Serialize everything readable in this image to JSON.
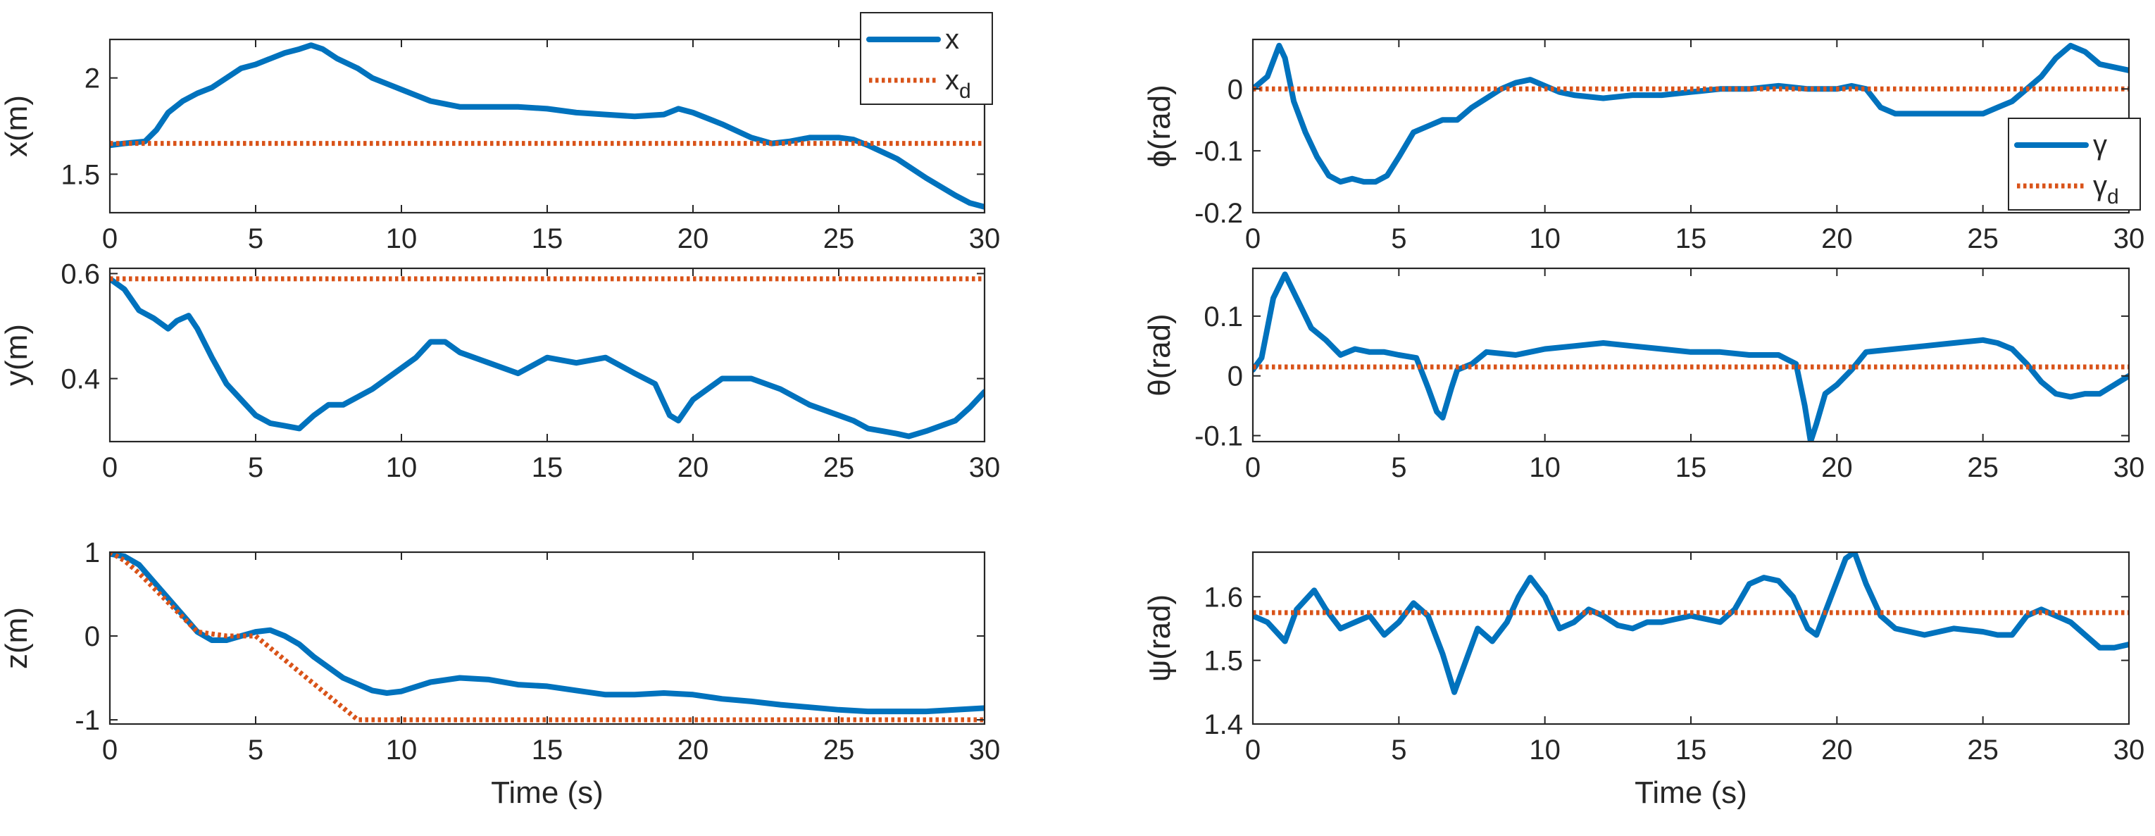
{
  "chart_data": [
    {
      "id": "x",
      "type": "line",
      "ylabel": "x(m)",
      "xlabel": "",
      "xlim": [
        0,
        30
      ],
      "ylim": [
        1.3,
        2.2
      ],
      "xticks": [
        "0",
        "5",
        "10",
        "15",
        "20",
        "25",
        "30"
      ],
      "yticks": [
        {
          "v": 1.5,
          "t": "1.5"
        },
        {
          "v": 2,
          "t": "2"
        }
      ],
      "legend": {
        "position": "top-right",
        "entries": [
          {
            "series": "actual",
            "label": "x",
            "sub": ""
          },
          {
            "series": "desired",
            "label": "x",
            "sub": "d"
          }
        ]
      },
      "series": [
        {
          "name": "x",
          "role": "actual",
          "color": "#0072BD",
          "x": [
            0,
            0.5,
            1.2,
            1.6,
            2,
            2.5,
            3,
            3.5,
            4,
            4.5,
            5,
            5.5,
            6,
            6.5,
            6.9,
            7.3,
            7.8,
            8.5,
            9,
            10,
            11,
            12,
            13,
            14,
            15,
            16,
            17,
            18,
            19,
            19.5,
            20,
            21,
            22,
            22.7,
            23.3,
            24,
            25,
            25.5,
            26,
            27,
            28,
            29,
            29.5,
            30
          ],
          "y": [
            1.65,
            1.66,
            1.67,
            1.73,
            1.82,
            1.88,
            1.92,
            1.95,
            2.0,
            2.05,
            2.07,
            2.1,
            2.13,
            2.15,
            2.17,
            2.15,
            2.1,
            2.05,
            2.0,
            1.94,
            1.88,
            1.85,
            1.85,
            1.85,
            1.84,
            1.82,
            1.81,
            1.8,
            1.81,
            1.84,
            1.82,
            1.76,
            1.69,
            1.66,
            1.67,
            1.69,
            1.69,
            1.68,
            1.65,
            1.58,
            1.48,
            1.39,
            1.35,
            1.33
          ]
        },
        {
          "name": "x_d",
          "role": "desired",
          "color": "#D95319",
          "x": [
            0,
            30
          ],
          "y": [
            1.66,
            1.66
          ]
        }
      ]
    },
    {
      "id": "y",
      "type": "line",
      "ylabel": "y(m)",
      "xlabel": "",
      "xlim": [
        0,
        30
      ],
      "ylim": [
        0.28,
        0.61
      ],
      "xticks": [
        "0",
        "5",
        "10",
        "15",
        "20",
        "25",
        "30"
      ],
      "yticks": [
        {
          "v": 0.4,
          "t": "0.4"
        },
        {
          "v": 0.6,
          "t": "0.6"
        }
      ],
      "legend": null,
      "series": [
        {
          "name": "y",
          "role": "actual",
          "color": "#0072BD",
          "x": [
            0,
            0.5,
            1,
            1.5,
            2,
            2.3,
            2.7,
            3,
            3.5,
            4,
            4.5,
            5,
            5.5,
            6,
            6.5,
            7,
            7.5,
            8,
            9,
            10,
            10.5,
            11,
            11.5,
            12,
            13,
            14,
            15,
            16,
            17,
            18,
            18.7,
            19.2,
            19.5,
            20,
            21,
            21.5,
            22,
            23,
            24,
            25,
            25.5,
            26,
            26.5,
            27,
            27.4,
            28,
            29,
            29.5,
            30
          ],
          "y": [
            0.59,
            0.57,
            0.53,
            0.515,
            0.495,
            0.51,
            0.52,
            0.495,
            0.44,
            0.39,
            0.36,
            0.33,
            0.315,
            0.31,
            0.305,
            0.33,
            0.35,
            0.35,
            0.38,
            0.42,
            0.44,
            0.47,
            0.47,
            0.45,
            0.43,
            0.41,
            0.44,
            0.43,
            0.44,
            0.41,
            0.39,
            0.33,
            0.32,
            0.36,
            0.4,
            0.4,
            0.4,
            0.38,
            0.35,
            0.33,
            0.32,
            0.305,
            0.3,
            0.295,
            0.29,
            0.3,
            0.32,
            0.345,
            0.375
          ]
        },
        {
          "name": "y_d",
          "role": "desired",
          "color": "#D95319",
          "x": [
            0,
            30
          ],
          "y": [
            0.59,
            0.59
          ]
        }
      ]
    },
    {
      "id": "z",
      "type": "line",
      "ylabel": "z(m)",
      "xlabel": "Time (s)",
      "xlim": [
        0,
        30
      ],
      "ylim": [
        -1.05,
        1.0
      ],
      "xticks": [
        "0",
        "5",
        "10",
        "15",
        "20",
        "25",
        "30"
      ],
      "yticks": [
        {
          "v": -1,
          "t": "-1"
        },
        {
          "v": 0,
          "t": "0"
        },
        {
          "v": 1,
          "t": "1"
        }
      ],
      "legend": null,
      "series": [
        {
          "name": "z",
          "role": "actual",
          "color": "#0072BD",
          "x": [
            0,
            0.5,
            1,
            1.5,
            2,
            2.5,
            3,
            3.5,
            4,
            4.5,
            5,
            5.5,
            6,
            6.5,
            7,
            8,
            9,
            9.5,
            10,
            11,
            12,
            13,
            14,
            15,
            16,
            17,
            18,
            19,
            20,
            21,
            22,
            23,
            24,
            25,
            26,
            27,
            28,
            29,
            30
          ],
          "y": [
            0.98,
            0.95,
            0.85,
            0.65,
            0.45,
            0.25,
            0.05,
            -0.05,
            -0.05,
            0.0,
            0.05,
            0.07,
            0.0,
            -0.1,
            -0.25,
            -0.5,
            -0.65,
            -0.68,
            -0.66,
            -0.55,
            -0.5,
            -0.52,
            -0.58,
            -0.6,
            -0.65,
            -0.7,
            -0.7,
            -0.68,
            -0.7,
            -0.75,
            -0.78,
            -0.82,
            -0.85,
            -0.88,
            -0.9,
            -0.9,
            -0.9,
            -0.88,
            -0.86
          ]
        },
        {
          "name": "z_d",
          "role": "desired",
          "color": "#D95319",
          "x": [
            0,
            0.5,
            1,
            2,
            3,
            4,
            5,
            8.5,
            30
          ],
          "y": [
            1.0,
            0.9,
            0.75,
            0.4,
            0.05,
            0.0,
            0.0,
            -1.0,
            -1.0
          ]
        }
      ]
    },
    {
      "id": "phi",
      "type": "line",
      "ylabel": "ϕ(rad)",
      "xlabel": "",
      "xlim": [
        0,
        30
      ],
      "ylim": [
        -0.2,
        0.08
      ],
      "xticks": [
        "0",
        "5",
        "10",
        "15",
        "20",
        "25",
        "30"
      ],
      "yticks": [
        {
          "v": -0.2,
          "t": "-0.2"
        },
        {
          "v": -0.1,
          "t": "-0.1"
        },
        {
          "v": 0,
          "t": "0"
        }
      ],
      "legend": {
        "position": "right",
        "entries": [
          {
            "series": "actual",
            "label": "γ",
            "sub": ""
          },
          {
            "series": "desired",
            "label": "γ",
            "sub": "d"
          }
        ]
      },
      "series": [
        {
          "name": "phi",
          "role": "actual",
          "color": "#0072BD",
          "x": [
            0,
            0.5,
            0.9,
            1.1,
            1.4,
            1.8,
            2.2,
            2.6,
            3,
            3.4,
            3.8,
            4.2,
            4.6,
            5,
            5.5,
            6,
            6.5,
            7,
            7.5,
            8,
            8.5,
            9,
            9.5,
            10,
            10.5,
            11,
            12,
            13,
            14,
            15,
            16,
            17,
            18,
            19,
            20,
            20.5,
            21,
            21.5,
            22,
            23,
            24,
            25,
            25.5,
            26,
            26.5,
            27,
            27.5,
            28,
            28.5,
            29,
            30
          ],
          "y": [
            0.0,
            0.02,
            0.07,
            0.05,
            -0.02,
            -0.07,
            -0.11,
            -0.14,
            -0.15,
            -0.145,
            -0.15,
            -0.15,
            -0.14,
            -0.11,
            -0.07,
            -0.06,
            -0.05,
            -0.05,
            -0.03,
            -0.015,
            0.0,
            0.01,
            0.015,
            0.005,
            -0.005,
            -0.01,
            -0.015,
            -0.01,
            -0.01,
            -0.005,
            0.0,
            0.0,
            0.005,
            0.0,
            0.0,
            0.005,
            0.0,
            -0.03,
            -0.04,
            -0.04,
            -0.04,
            -0.04,
            -0.03,
            -0.02,
            0.0,
            0.02,
            0.05,
            0.07,
            0.06,
            0.04,
            0.03
          ]
        },
        {
          "name": "phi_d",
          "role": "desired",
          "color": "#D95319",
          "x": [
            0,
            30
          ],
          "y": [
            0.0,
            0.0
          ]
        }
      ]
    },
    {
      "id": "theta",
      "type": "line",
      "ylabel": "θ(rad)",
      "xlabel": "",
      "xlim": [
        0,
        30
      ],
      "ylim": [
        -0.11,
        0.18
      ],
      "xticks": [
        "0",
        "5",
        "10",
        "15",
        "20",
        "25",
        "30"
      ],
      "yticks": [
        {
          "v": -0.1,
          "t": "-0.1"
        },
        {
          "v": 0,
          "t": "0"
        },
        {
          "v": 0.1,
          "t": "0.1"
        }
      ],
      "legend": null,
      "series": [
        {
          "name": "theta",
          "role": "actual",
          "color": "#0072BD",
          "x": [
            0,
            0.3,
            0.7,
            1.1,
            1.5,
            2,
            2.5,
            3,
            3.5,
            4,
            4.5,
            5,
            5.6,
            6,
            6.3,
            6.5,
            6.8,
            7,
            7.5,
            8,
            9,
            10,
            11,
            12,
            13,
            14,
            15,
            16,
            17,
            18,
            18.6,
            18.9,
            19.1,
            19.3,
            19.6,
            20,
            20.5,
            21,
            22,
            23,
            24,
            25,
            25.5,
            26,
            26.5,
            27,
            27.5,
            28,
            28.5,
            29,
            30
          ],
          "y": [
            0.01,
            0.03,
            0.13,
            0.17,
            0.13,
            0.08,
            0.06,
            0.035,
            0.045,
            0.04,
            0.04,
            0.035,
            0.03,
            -0.02,
            -0.06,
            -0.07,
            -0.02,
            0.01,
            0.02,
            0.04,
            0.035,
            0.045,
            0.05,
            0.055,
            0.05,
            0.045,
            0.04,
            0.04,
            0.035,
            0.035,
            0.02,
            -0.05,
            -0.11,
            -0.08,
            -0.03,
            -0.015,
            0.01,
            0.04,
            0.045,
            0.05,
            0.055,
            0.06,
            0.055,
            0.045,
            0.02,
            -0.01,
            -0.03,
            -0.035,
            -0.03,
            -0.03,
            0.0
          ]
        },
        {
          "name": "theta_d",
          "role": "desired",
          "color": "#D95319",
          "x": [
            0,
            30
          ],
          "y": [
            0.015,
            0.015
          ]
        }
      ]
    },
    {
      "id": "psi",
      "type": "line",
      "ylabel": "ψ(rad)",
      "xlabel": "Time (s)",
      "xlim": [
        0,
        30
      ],
      "ylim": [
        1.4,
        1.67
      ],
      "xticks": [
        "0",
        "5",
        "10",
        "15",
        "20",
        "25",
        "30"
      ],
      "yticks": [
        {
          "v": 1.4,
          "t": "1.4"
        },
        {
          "v": 1.5,
          "t": "1.5"
        },
        {
          "v": 1.6,
          "t": "1.6"
        }
      ],
      "legend": null,
      "series": [
        {
          "name": "psi",
          "role": "actual",
          "color": "#0072BD",
          "x": [
            0,
            0.5,
            1.1,
            1.5,
            2.1,
            2.5,
            3,
            3.5,
            4,
            4.5,
            5,
            5.5,
            6,
            6.5,
            6.9,
            7.3,
            7.7,
            8.2,
            8.7,
            9.1,
            9.5,
            10,
            10.5,
            11,
            11.5,
            12,
            12.5,
            13,
            13.5,
            14,
            15,
            15.5,
            16,
            16.5,
            17,
            17.5,
            18,
            18.5,
            19,
            19.3,
            19.8,
            20.3,
            20.6,
            21,
            21.5,
            22,
            23,
            24,
            25,
            25.5,
            26,
            26.5,
            27,
            28,
            28.5,
            29,
            29.5,
            30
          ],
          "y": [
            1.57,
            1.56,
            1.53,
            1.58,
            1.61,
            1.58,
            1.55,
            1.56,
            1.57,
            1.54,
            1.56,
            1.59,
            1.57,
            1.51,
            1.45,
            1.5,
            1.55,
            1.53,
            1.56,
            1.6,
            1.63,
            1.6,
            1.55,
            1.56,
            1.58,
            1.57,
            1.555,
            1.55,
            1.56,
            1.56,
            1.57,
            1.565,
            1.56,
            1.58,
            1.62,
            1.63,
            1.625,
            1.6,
            1.55,
            1.54,
            1.6,
            1.66,
            1.67,
            1.62,
            1.57,
            1.55,
            1.54,
            1.55,
            1.545,
            1.54,
            1.54,
            1.57,
            1.58,
            1.56,
            1.54,
            1.52,
            1.52,
            1.525
          ]
        },
        {
          "name": "psi_d",
          "role": "desired",
          "color": "#D95319",
          "x": [
            0,
            30
          ],
          "y": [
            1.575,
            1.575
          ]
        }
      ]
    }
  ]
}
